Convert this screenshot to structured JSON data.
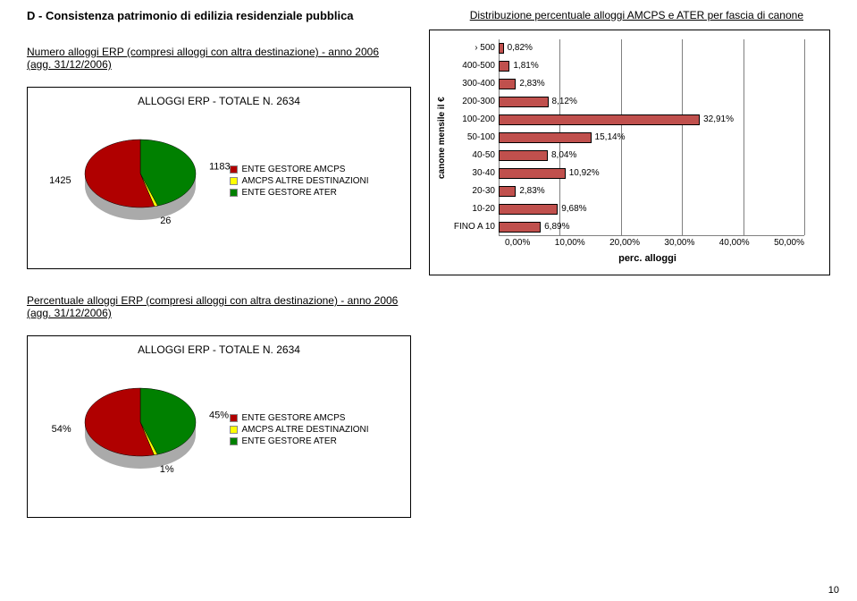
{
  "section": {
    "letter": "D - ",
    "title": "Consistenza patrimonio di edilizia residenziale pubblica"
  },
  "dist_title": "Distribuzione percentuale alloggi AMCPS e ATER per fascia di canone",
  "numero_title": "Numero alloggi ERP (compresi alloggi con altra destinazione) - anno 2006",
  "perc_title": "Percentuale alloggi ERP (compresi alloggi con altra destinazione) - anno 2006",
  "agg": "(agg. 31/12/2006)",
  "box_title": "ALLOGGI ERP - TOTALE N. 2634",
  "legend": [
    {
      "label": "ENTE GESTORE AMCPS",
      "color": "#b00000"
    },
    {
      "label": "AMCPS ALTRE DESTINAZIONI",
      "color": "#ffff00"
    },
    {
      "label": "ENTE GESTORE ATER",
      "color": "#008000"
    }
  ],
  "pie1": {
    "slices": [
      {
        "value": 1183,
        "color": "#008000",
        "label": "1183"
      },
      {
        "value": 26,
        "color": "#ffff00",
        "label": "26"
      },
      {
        "value": 1425,
        "color": "#b00000",
        "label": "1425"
      }
    ]
  },
  "pie2": {
    "slices": [
      {
        "value": 45,
        "color": "#008000",
        "label": "45%"
      },
      {
        "value": 1,
        "color": "#ffff00",
        "label": "1%"
      },
      {
        "value": 54,
        "color": "#b00000",
        "label": "54%"
      }
    ]
  },
  "bar": {
    "ylabel": "canone mensile il €",
    "categories": [
      "› 500",
      "400-500",
      "300-400",
      "200-300",
      "100-200",
      "50-100",
      "40-50",
      "30-40",
      "20-30",
      "10-20",
      "FINO A 10"
    ],
    "values": [
      0.82,
      1.81,
      2.83,
      8.12,
      32.91,
      15.14,
      8.04,
      10.92,
      2.83,
      9.68,
      6.89
    ],
    "value_labels": [
      "0,82%",
      "1,81%",
      "2,83%",
      "8,12%",
      "32,91%",
      "15,14%",
      "8,04%",
      "10,92%",
      "2,83%",
      "9,68%",
      "6,89%"
    ],
    "xmax": 50,
    "xtick_step": 10,
    "xtick_labels": [
      "0,00%",
      "10,00%",
      "20,00%",
      "30,00%",
      "40,00%",
      "50,00%"
    ],
    "xaxis_title": "perc. alloggi",
    "bar_fill": "#c0504d",
    "bar_border": "#000000",
    "grid_color": "#808080",
    "bg": "#ffffff"
  },
  "page_num": "10"
}
